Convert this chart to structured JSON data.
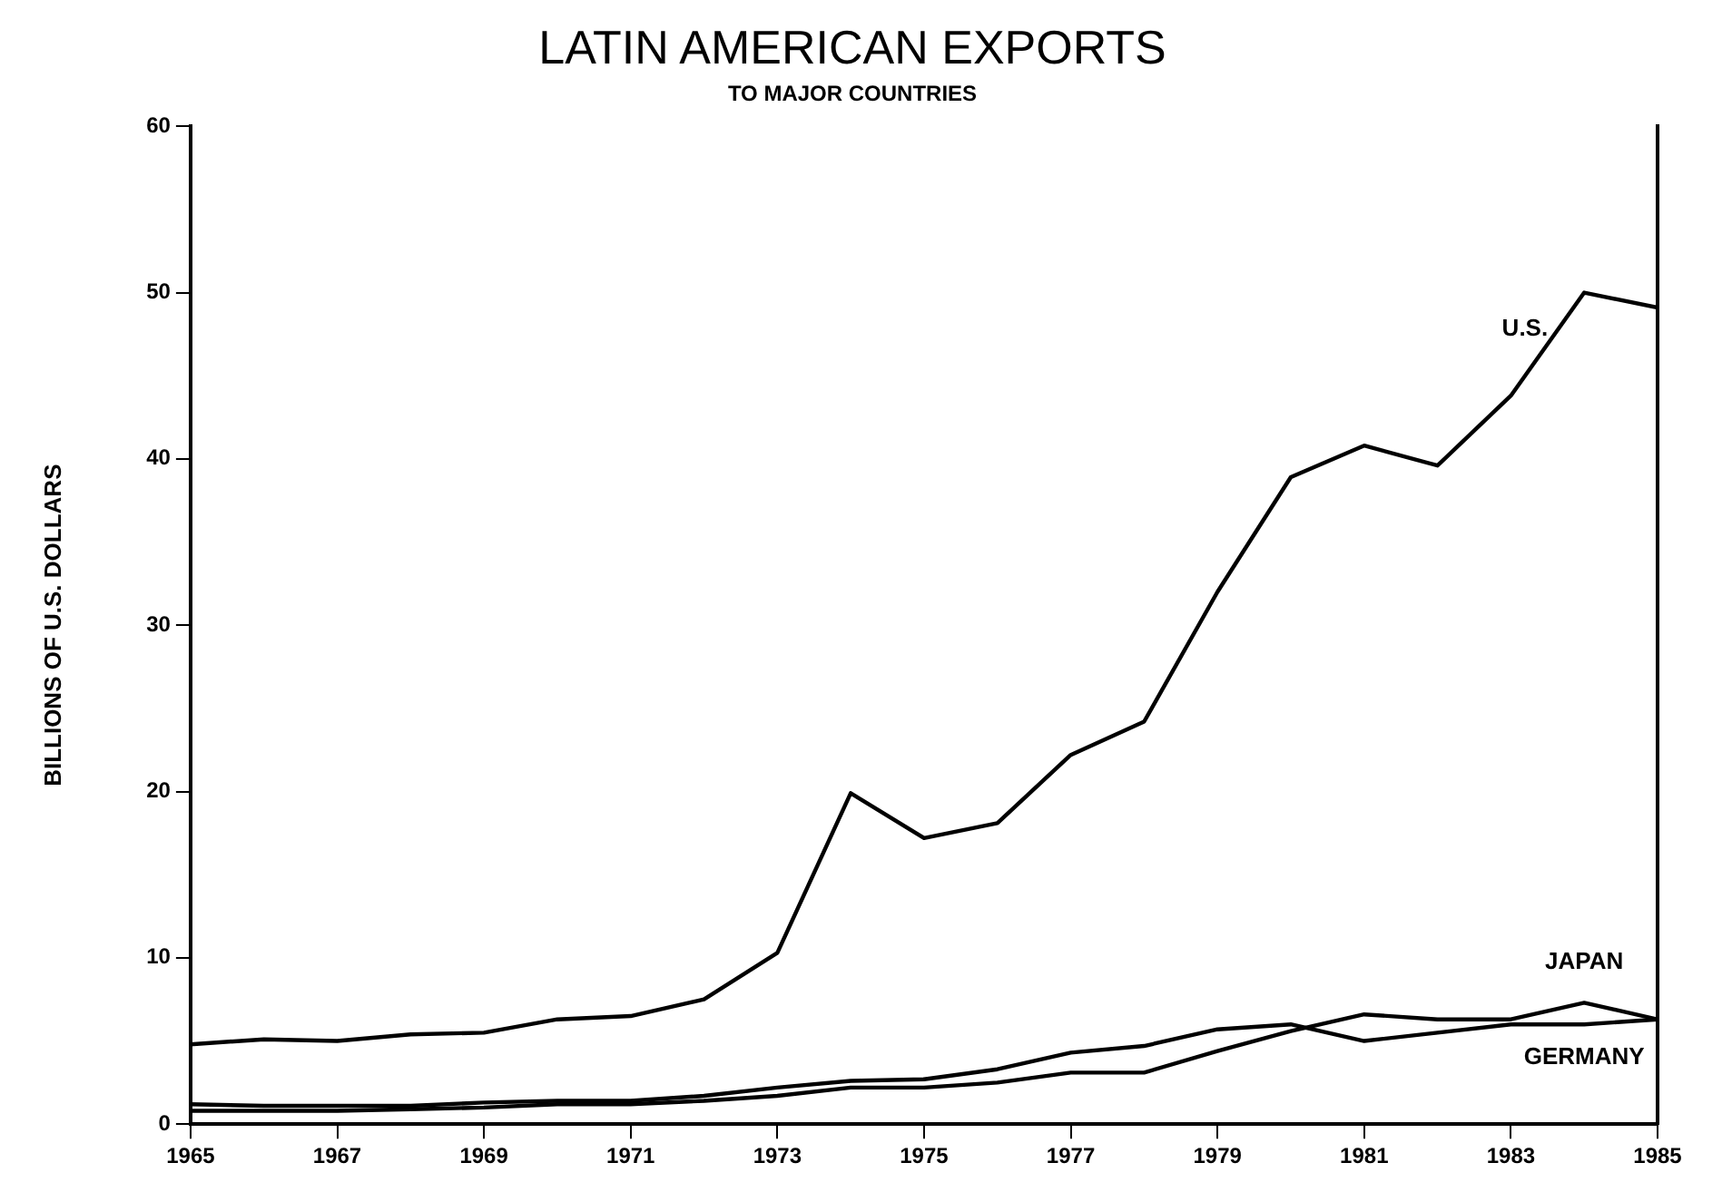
{
  "chart_data": {
    "type": "line",
    "title": "LATIN AMERICAN EXPORTS",
    "subtitle": "TO MAJOR COUNTRIES",
    "ylabel": "BILLIONS OF U.S. DOLLARS",
    "x": [
      1965,
      1966,
      1967,
      1968,
      1969,
      1970,
      1971,
      1972,
      1973,
      1974,
      1975,
      1976,
      1977,
      1978,
      1979,
      1980,
      1981,
      1982,
      1983,
      1984,
      1985
    ],
    "series": [
      {
        "name": "U.S.",
        "color": "#000000",
        "values": [
          4.8,
          5.1,
          5.0,
          5.4,
          5.5,
          6.3,
          6.5,
          7.5,
          10.3,
          19.9,
          17.2,
          18.1,
          22.2,
          24.2,
          32.0,
          38.9,
          40.8,
          39.6,
          43.8,
          50.0,
          49.1
        ]
      },
      {
        "name": "JAPAN",
        "color": "#000000",
        "values": [
          0.8,
          0.8,
          0.8,
          0.9,
          1.0,
          1.2,
          1.2,
          1.4,
          1.7,
          2.2,
          2.2,
          2.5,
          3.1,
          3.1,
          4.4,
          5.6,
          6.6,
          6.3,
          6.3,
          7.3,
          6.3
        ]
      },
      {
        "name": "GERMANY",
        "color": "#000000",
        "values": [
          1.2,
          1.1,
          1.1,
          1.1,
          1.3,
          1.4,
          1.4,
          1.7,
          2.2,
          2.6,
          2.7,
          3.3,
          4.3,
          4.7,
          5.7,
          6.0,
          5.0,
          5.5,
          6.0,
          6.0,
          6.3
        ]
      }
    ],
    "xlim": [
      1965,
      1985
    ],
    "xticks": [
      1965,
      1967,
      1969,
      1971,
      1973,
      1975,
      1977,
      1979,
      1981,
      1983,
      1985
    ],
    "ylim": [
      0,
      60
    ],
    "yticks": [
      0,
      10,
      20,
      30,
      40,
      50,
      60
    ],
    "grid": false,
    "legend": false,
    "marker": "none",
    "line_style": "solid"
  }
}
